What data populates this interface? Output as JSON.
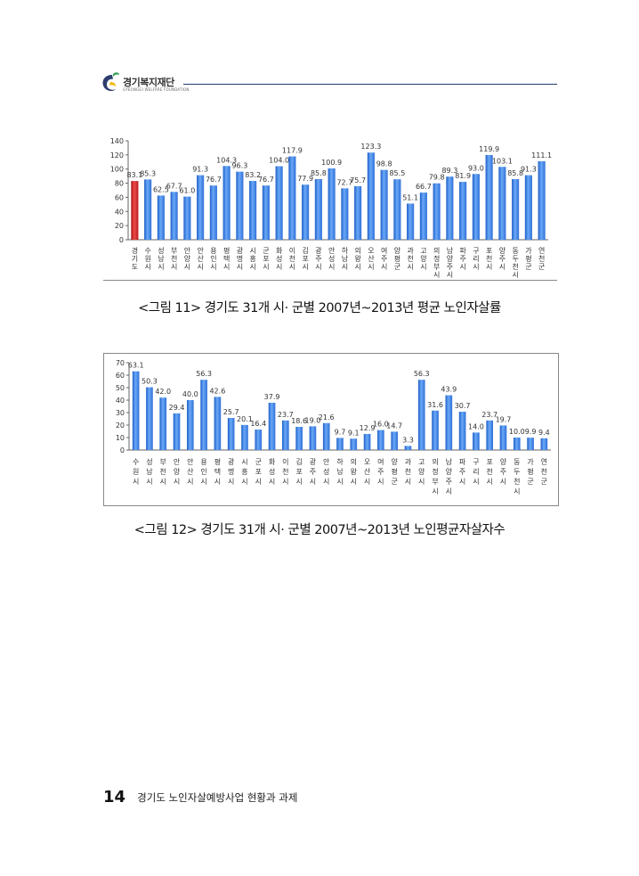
{
  "header": {
    "logo_text": "경기복지재단",
    "logo_sub": "GYEONGGI WELFARE FOUNDATION",
    "brand_color": "#1f3a6a"
  },
  "colors": {
    "bar_blue": "#3f82e8",
    "bar_highlight": "#d42020",
    "axis": "#666666"
  },
  "captions": {
    "chart1": "<그림 11> 경기도 31개 시· 군별 2007년~2013년 평균 노인자살률",
    "chart2": "<그림 12> 경기도 31개 시· 군별 2007년~2013년 노인평균자살자수"
  },
  "footer": {
    "page_number": "14",
    "text": "경기도 노인자살예방사업 현황과 과제"
  },
  "chart_data": [
    {
      "type": "bar",
      "categories": [
        "경기도",
        "수원시",
        "성남시",
        "부천시",
        "안양시",
        "안산시",
        "용인시",
        "평택시",
        "광명시",
        "시흥시",
        "군포시",
        "화성시",
        "이천시",
        "김포시",
        "광주시",
        "안성시",
        "하남시",
        "의왕시",
        "오산시",
        "여주시",
        "양평군",
        "과천시",
        "고양시",
        "의정부시",
        "남양주시",
        "파주시",
        "구리시",
        "포천시",
        "양주시",
        "동두천시",
        "가평군",
        "연천군"
      ],
      "labels": [
        [
          "경",
          "기",
          "도"
        ],
        [
          "수",
          "원",
          "시"
        ],
        [
          "성",
          "남",
          "시"
        ],
        [
          "부",
          "천",
          "시"
        ],
        [
          "안",
          "양",
          "시"
        ],
        [
          "안",
          "산",
          "시"
        ],
        [
          "용",
          "인",
          "시"
        ],
        [
          "평",
          "택",
          "시"
        ],
        [
          "광",
          "명",
          "시"
        ],
        [
          "시",
          "흥",
          "시"
        ],
        [
          "군",
          "포",
          "시"
        ],
        [
          "화",
          "성",
          "시"
        ],
        [
          "이",
          "천",
          "시"
        ],
        [
          "김",
          "포",
          "시"
        ],
        [
          "광",
          "주",
          "시"
        ],
        [
          "안",
          "성",
          "시"
        ],
        [
          "하",
          "남",
          "시"
        ],
        [
          "의",
          "왕",
          "시"
        ],
        [
          "오",
          "산",
          "시"
        ],
        [
          "여",
          "주",
          "시"
        ],
        [
          "양",
          "평",
          "군"
        ],
        [
          "과",
          "천",
          "시"
        ],
        [
          "고",
          "양",
          "시"
        ],
        [
          "의",
          "정",
          "부",
          "시"
        ],
        [
          "남",
          "양",
          "주",
          "시"
        ],
        [
          "파",
          "주",
          "시"
        ],
        [
          "구",
          "리",
          "시"
        ],
        [
          "포",
          "천",
          "시"
        ],
        [
          "양",
          "주",
          "시"
        ],
        [
          "동",
          "두",
          "천",
          "시"
        ],
        [
          "가",
          "평",
          "군"
        ],
        [
          "연",
          "천",
          "군"
        ]
      ],
      "values": [
        83.1,
        85.3,
        62.5,
        67.7,
        61.0,
        91.3,
        76.7,
        104.3,
        96.3,
        83.2,
        76.7,
        104.0,
        117.9,
        77.9,
        85.8,
        100.9,
        72.7,
        75.7,
        123.3,
        98.8,
        85.5,
        51.1,
        66.7,
        79.8,
        89.3,
        81.9,
        93.0,
        119.9,
        103.1,
        85.8,
        91.3,
        111.1
      ],
      "highlight_index": 0,
      "ylim": [
        0,
        140
      ],
      "yticks": [
        0,
        20,
        40,
        60,
        80,
        100,
        120,
        140
      ]
    },
    {
      "type": "bar",
      "categories": [
        "수원시",
        "성남시",
        "부천시",
        "안양시",
        "안산시",
        "용인시",
        "평택시",
        "광명시",
        "시흥시",
        "군포시",
        "화성시",
        "이천시",
        "김포시",
        "광주시",
        "안성시",
        "하남시",
        "의왕시",
        "오산시",
        "여주시",
        "양평군",
        "과천시",
        "고양시",
        "의정부시",
        "남양주시",
        "파주시",
        "구리시",
        "포천시",
        "양주시",
        "동두천시",
        "가평군",
        "연천군"
      ],
      "labels": [
        [
          "수",
          "원",
          "시"
        ],
        [
          "성",
          "남",
          "시"
        ],
        [
          "부",
          "천",
          "시"
        ],
        [
          "안",
          "양",
          "시"
        ],
        [
          "안",
          "산",
          "시"
        ],
        [
          "용",
          "인",
          "시"
        ],
        [
          "평",
          "택",
          "시"
        ],
        [
          "광",
          "명",
          "시"
        ],
        [
          "시",
          "흥",
          "시"
        ],
        [
          "군",
          "포",
          "시"
        ],
        [
          "화",
          "성",
          "시"
        ],
        [
          "이",
          "천",
          "시"
        ],
        [
          "김",
          "포",
          "시"
        ],
        [
          "광",
          "주",
          "시"
        ],
        [
          "안",
          "성",
          "시"
        ],
        [
          "하",
          "남",
          "시"
        ],
        [
          "의",
          "왕",
          "시"
        ],
        [
          "오",
          "산",
          "시"
        ],
        [
          "여",
          "주",
          "시"
        ],
        [
          "양",
          "평",
          "군"
        ],
        [
          "과",
          "천",
          "시"
        ],
        [
          "고",
          "양",
          "시"
        ],
        [
          "의",
          "정",
          "부",
          "시"
        ],
        [
          "남",
          "양",
          "주",
          "시"
        ],
        [
          "파",
          "주",
          "시"
        ],
        [
          "구",
          "리",
          "시"
        ],
        [
          "포",
          "천",
          "시"
        ],
        [
          "양",
          "주",
          "시"
        ],
        [
          "동",
          "두",
          "천",
          "시"
        ],
        [
          "가",
          "평",
          "군"
        ],
        [
          "연",
          "천",
          "군"
        ]
      ],
      "values": [
        63.1,
        50.3,
        42.0,
        29.4,
        40.0,
        56.3,
        42.6,
        25.7,
        20.1,
        16.4,
        37.9,
        23.7,
        18.6,
        19.0,
        21.6,
        9.7,
        9.1,
        12.9,
        16.0,
        14.7,
        3.3,
        56.3,
        31.6,
        43.9,
        30.7,
        14.0,
        23.7,
        19.7,
        10.0,
        9.9,
        9.4
      ],
      "ylim": [
        0,
        70
      ],
      "yticks": [
        0,
        10,
        20,
        30,
        40,
        50,
        60,
        70
      ]
    }
  ]
}
